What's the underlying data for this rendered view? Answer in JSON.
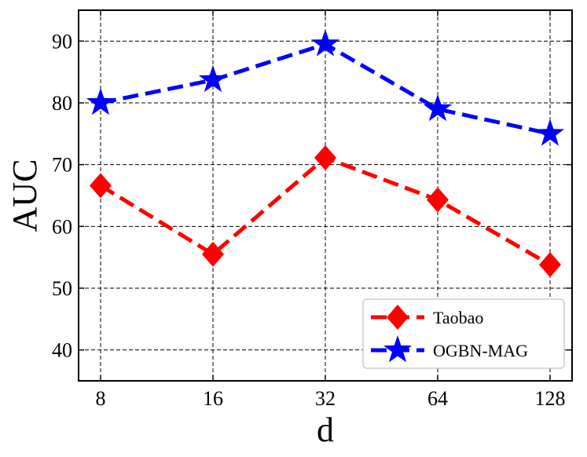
{
  "chart_data": {
    "type": "line",
    "title": "",
    "xlabel": "d",
    "ylabel": "AUC",
    "categories": [
      "8",
      "16",
      "32",
      "64",
      "128"
    ],
    "ylim": [
      35,
      95
    ],
    "yticks": [
      40,
      50,
      60,
      70,
      80,
      90
    ],
    "grid": true,
    "legend_position": "lower-right",
    "series": [
      {
        "name": "Taobao",
        "color": "#ff0000",
        "marker": "diamond",
        "line_style": "dashed",
        "values": [
          66.6,
          55.5,
          71.1,
          64.3,
          53.8
        ]
      },
      {
        "name": "OGBN-MAG",
        "color": "#0000ff",
        "marker": "star",
        "line_style": "dashed",
        "values": [
          80.0,
          83.7,
          89.5,
          79.0,
          75.0
        ]
      }
    ]
  }
}
